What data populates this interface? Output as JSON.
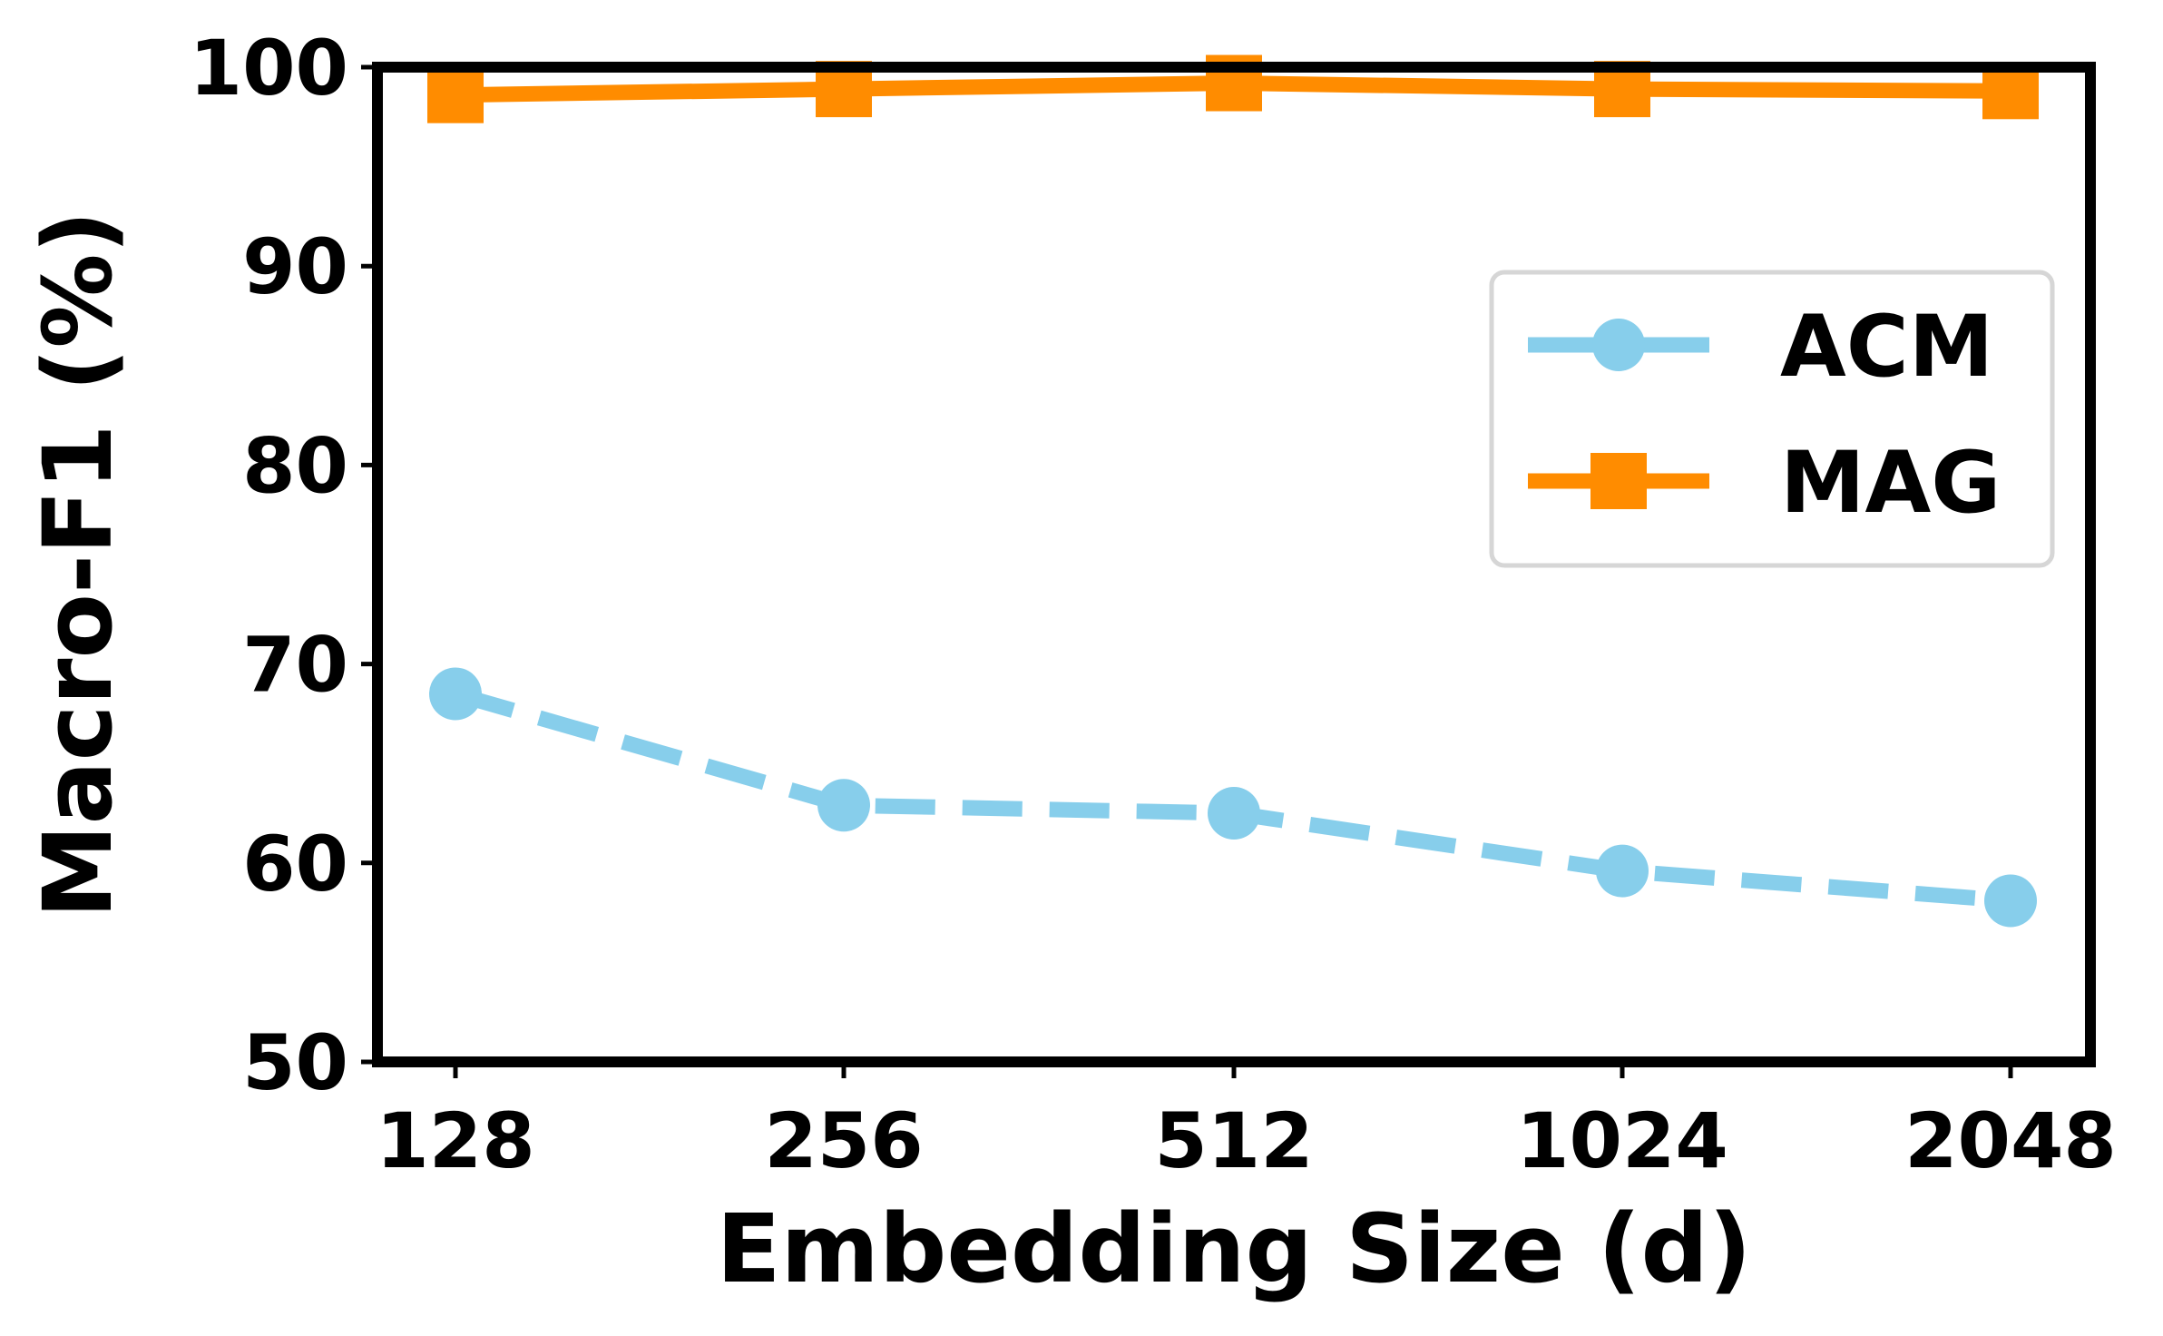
{
  "chart_data": {
    "type": "line",
    "categories": [
      "128",
      "256",
      "512",
      "1024",
      "2048"
    ],
    "series": [
      {
        "name": "ACM",
        "values": [
          68.5,
          62.9,
          62.5,
          59.6,
          58.1
        ],
        "color": "#87CEEB",
        "line_style": "dashed",
        "marker": "circle"
      },
      {
        "name": "MAG",
        "values": [
          98.6,
          98.9,
          99.2,
          98.9,
          98.8
        ],
        "color": "#FF8C00",
        "line_style": "solid",
        "marker": "square"
      }
    ],
    "xlabel": "Embedding Size (d)",
    "ylabel": "Macro-F1 (%)",
    "ylim": [
      50,
      100
    ],
    "yticks": [
      "50",
      "60",
      "70",
      "80",
      "90",
      "100"
    ],
    "grid": false,
    "legend_position": "right"
  }
}
